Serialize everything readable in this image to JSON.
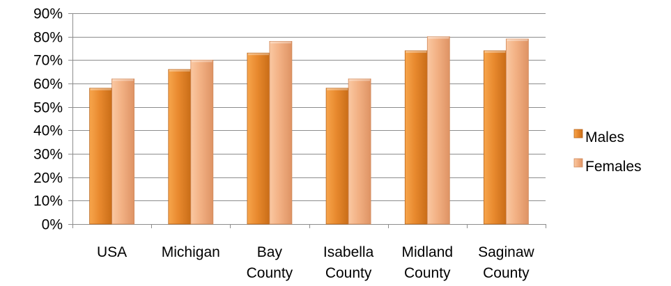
{
  "chart_data": {
    "type": "bar",
    "categories": [
      [
        "USA"
      ],
      [
        "Michigan"
      ],
      [
        "Bay",
        "County"
      ],
      [
        "Isabella",
        "County"
      ],
      [
        "Midland",
        "County"
      ],
      [
        "Saginaw",
        "County"
      ]
    ],
    "series": [
      {
        "name": "Males",
        "values": [
          0.58,
          0.66,
          0.73,
          0.58,
          0.74,
          0.74
        ],
        "color": "#E8892E"
      },
      {
        "name": "Females",
        "values": [
          0.62,
          0.7,
          0.78,
          0.62,
          0.8,
          0.79
        ],
        "color": "#F2B083"
      }
    ],
    "ylim": [
      0,
      0.9
    ],
    "yticks": [
      "0%",
      "10%",
      "20%",
      "30%",
      "40%",
      "50%",
      "60%",
      "70%",
      "80%",
      "90%"
    ],
    "grid": true,
    "legend_position": "right",
    "title": "",
    "xlabel": "",
    "ylabel": ""
  }
}
